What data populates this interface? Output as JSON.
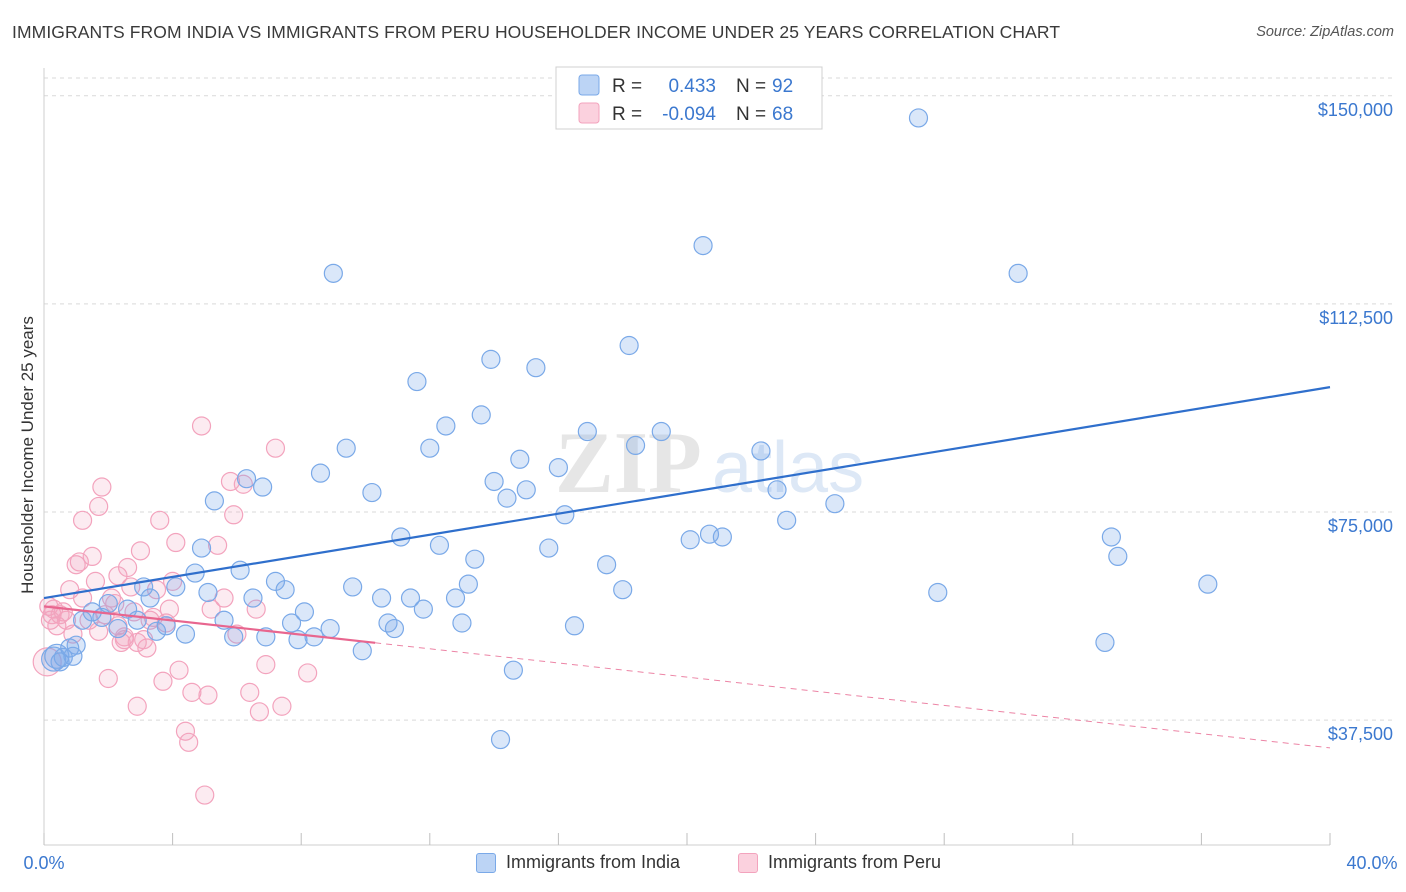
{
  "title": "IMMIGRANTS FROM INDIA VS IMMIGRANTS FROM PERU HOUSEHOLDER INCOME UNDER 25 YEARS CORRELATION CHART",
  "source": "Source: ZipAtlas.com",
  "watermark": {
    "zip": "ZIP",
    "atlas": "atlas"
  },
  "colors": {
    "india": "#7aa9e8",
    "india_line": "#2f6fcc",
    "peru": "#f3a3bd",
    "peru_line": "#e8668f",
    "axis_text": "#3b78cf",
    "grid": "#d9d9d9"
  },
  "legend": {
    "india": {
      "r_label": "R =",
      "r_value": "0.433",
      "n_label": "N =",
      "n_value": "92"
    },
    "peru": {
      "r_label": "R =",
      "r_value": "-0.094",
      "n_label": "N =",
      "n_value": "68"
    }
  },
  "bottom_legend": {
    "india": "Immigrants from India",
    "peru": "Immigrants from Peru"
  },
  "chart_data": {
    "type": "scatter",
    "title": "IMMIGRANTS FROM INDIA VS IMMIGRANTS FROM PERU HOUSEHOLDER INCOME UNDER 25 YEARS CORRELATION CHART",
    "xlabel": "",
    "ylabel": "Householder Income Under 25 years",
    "xlim": [
      0,
      40
    ],
    "ylim": [
      15000,
      155000
    ],
    "x_tick_labels": [
      "0.0%",
      "40.0%"
    ],
    "y_ticks": [
      37500,
      75000,
      112500,
      150000
    ],
    "y_tick_labels": [
      "$37,500",
      "$75,000",
      "$112,500",
      "$150,000"
    ],
    "grid": "horizontal dashed",
    "legend_placement": "top-center",
    "series": [
      {
        "name": "Immigrants from India",
        "R": 0.433,
        "N": 92,
        "trend": {
          "x": [
            0,
            40
          ],
          "y": [
            59500,
            97500
          ],
          "dashed_from_x": null
        },
        "points": [
          [
            0.3,
            48500
          ],
          [
            0.5,
            48000
          ],
          [
            0.6,
            48800
          ],
          [
            0.8,
            50500
          ],
          [
            0.9,
            49000
          ],
          [
            1.0,
            51000
          ],
          [
            1.2,
            55500
          ],
          [
            1.5,
            57000
          ],
          [
            1.8,
            56000
          ],
          [
            2.0,
            58500
          ],
          [
            2.3,
            54000
          ],
          [
            2.6,
            57500
          ],
          [
            2.9,
            55500
          ],
          [
            3.1,
            61500
          ],
          [
            3.3,
            59500
          ],
          [
            3.5,
            53500
          ],
          [
            3.8,
            54500
          ],
          [
            4.1,
            61500
          ],
          [
            4.4,
            53000
          ],
          [
            4.7,
            64000
          ],
          [
            4.9,
            68500
          ],
          [
            5.1,
            60500
          ],
          [
            5.3,
            77000
          ],
          [
            5.6,
            55500
          ],
          [
            5.9,
            52500
          ],
          [
            6.1,
            64500
          ],
          [
            6.3,
            81000
          ],
          [
            6.5,
            59500
          ],
          [
            6.8,
            79500
          ],
          [
            6.9,
            52500
          ],
          [
            7.2,
            62500
          ],
          [
            7.5,
            61000
          ],
          [
            7.7,
            55000
          ],
          [
            7.9,
            52000
          ],
          [
            8.1,
            57000
          ],
          [
            8.4,
            52500
          ],
          [
            8.6,
            82000
          ],
          [
            8.9,
            54000
          ],
          [
            9.0,
            118000
          ],
          [
            9.4,
            86500
          ],
          [
            9.6,
            61500
          ],
          [
            9.9,
            50000
          ],
          [
            10.2,
            78500
          ],
          [
            10.5,
            59500
          ],
          [
            10.7,
            55000
          ],
          [
            10.9,
            54000
          ],
          [
            11.1,
            70500
          ],
          [
            11.4,
            59500
          ],
          [
            11.6,
            98500
          ],
          [
            11.8,
            57500
          ],
          [
            12.0,
            86500
          ],
          [
            12.3,
            69000
          ],
          [
            12.5,
            90500
          ],
          [
            12.8,
            59500
          ],
          [
            13.0,
            55000
          ],
          [
            13.2,
            62000
          ],
          [
            13.4,
            66500
          ],
          [
            13.6,
            92500
          ],
          [
            13.9,
            102500
          ],
          [
            14.0,
            80500
          ],
          [
            14.4,
            77500
          ],
          [
            14.6,
            46500
          ],
          [
            14.8,
            84500
          ],
          [
            14.2,
            34000
          ],
          [
            15.0,
            79000
          ],
          [
            15.3,
            101000
          ],
          [
            15.7,
            68500
          ],
          [
            16.0,
            83000
          ],
          [
            16.2,
            74500
          ],
          [
            16.5,
            54500
          ],
          [
            16.9,
            89500
          ],
          [
            17.5,
            65500
          ],
          [
            18.0,
            61000
          ],
          [
            18.2,
            105000
          ],
          [
            18.4,
            87000
          ],
          [
            19.2,
            89500
          ],
          [
            20.1,
            70000
          ],
          [
            20.5,
            123000
          ],
          [
            20.7,
            71000
          ],
          [
            21.1,
            70500
          ],
          [
            22.3,
            86000
          ],
          [
            22.8,
            79000
          ],
          [
            23.1,
            73500
          ],
          [
            24.6,
            76500
          ],
          [
            27.2,
            146000
          ],
          [
            27.8,
            60500
          ],
          [
            30.3,
            118000
          ],
          [
            33.0,
            51500
          ],
          [
            33.2,
            70500
          ],
          [
            33.4,
            67000
          ],
          [
            36.2,
            62000
          ],
          [
            0.4,
            49000
          ]
        ]
      },
      {
        "name": "Immigrants from Peru",
        "R": -0.094,
        "N": 68,
        "trend": {
          "x": [
            0,
            40
          ],
          "y": [
            58000,
            32500
          ],
          "dashed_from_x": 10.3
        },
        "points": [
          [
            0.1,
            48000
          ],
          [
            0.2,
            55500
          ],
          [
            0.3,
            57500
          ],
          [
            0.4,
            54500
          ],
          [
            0.5,
            56500
          ],
          [
            0.6,
            57000
          ],
          [
            0.7,
            55500
          ],
          [
            0.8,
            61000
          ],
          [
            0.9,
            53000
          ],
          [
            1.0,
            65500
          ],
          [
            1.1,
            66000
          ],
          [
            1.2,
            59500
          ],
          [
            1.2,
            73500
          ],
          [
            1.4,
            55500
          ],
          [
            1.5,
            67000
          ],
          [
            1.6,
            62500
          ],
          [
            1.7,
            76000
          ],
          [
            1.7,
            53500
          ],
          [
            1.8,
            79500
          ],
          [
            1.9,
            56500
          ],
          [
            2.0,
            45000
          ],
          [
            2.1,
            59500
          ],
          [
            2.2,
            58500
          ],
          [
            2.3,
            63500
          ],
          [
            2.3,
            54500
          ],
          [
            2.4,
            51500
          ],
          [
            2.5,
            52000
          ],
          [
            2.5,
            52500
          ],
          [
            2.6,
            65000
          ],
          [
            2.7,
            61500
          ],
          [
            2.8,
            57000
          ],
          [
            2.9,
            51500
          ],
          [
            2.9,
            40000
          ],
          [
            3.0,
            68000
          ],
          [
            3.1,
            52000
          ],
          [
            3.2,
            50500
          ],
          [
            3.3,
            55500
          ],
          [
            3.4,
            56000
          ],
          [
            3.5,
            61000
          ],
          [
            3.6,
            73500
          ],
          [
            3.7,
            44500
          ],
          [
            3.8,
            55000
          ],
          [
            3.9,
            57500
          ],
          [
            4.0,
            62500
          ],
          [
            4.1,
            69500
          ],
          [
            4.2,
            46500
          ],
          [
            4.4,
            35500
          ],
          [
            4.5,
            33500
          ],
          [
            4.6,
            42500
          ],
          [
            4.9,
            90500
          ],
          [
            5.0,
            24000
          ],
          [
            5.1,
            42000
          ],
          [
            5.2,
            57500
          ],
          [
            5.4,
            69000
          ],
          [
            5.6,
            59500
          ],
          [
            5.8,
            80500
          ],
          [
            5.9,
            74500
          ],
          [
            6.0,
            53000
          ],
          [
            6.2,
            80000
          ],
          [
            6.4,
            42500
          ],
          [
            6.6,
            57500
          ],
          [
            6.7,
            39000
          ],
          [
            6.9,
            47500
          ],
          [
            7.2,
            86500
          ],
          [
            7.4,
            40000
          ],
          [
            8.2,
            46000
          ],
          [
            0.15,
            58000
          ],
          [
            0.25,
            56500
          ]
        ]
      }
    ]
  }
}
